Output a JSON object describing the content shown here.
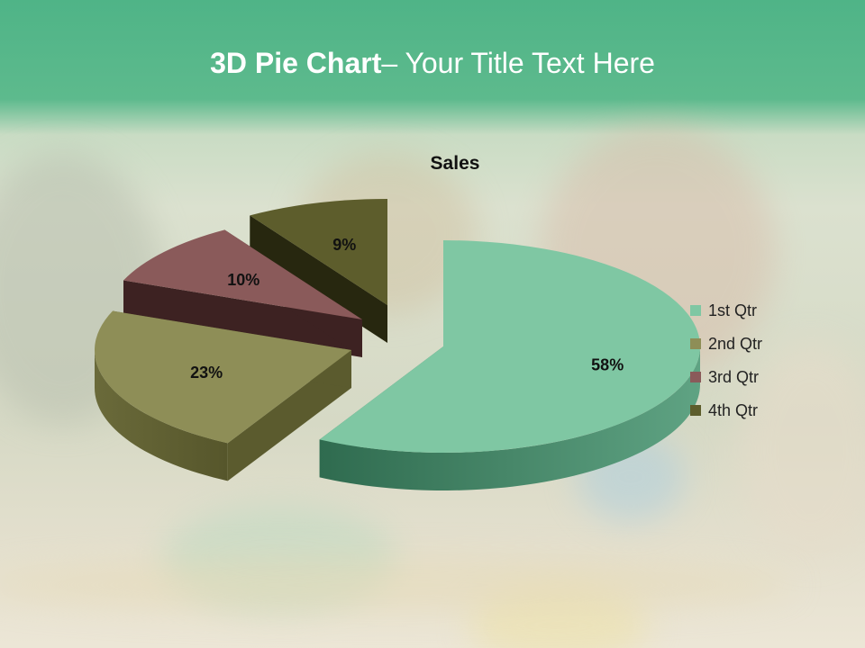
{
  "slide_title": {
    "bold": "3D Pie Chart",
    "rest": "– Your Title Text Here"
  },
  "chart_data": {
    "type": "pie",
    "title": "Sales",
    "categories": [
      "1st Qtr",
      "2nd Qtr",
      "3rd Qtr",
      "4th Qtr"
    ],
    "values": [
      58,
      23,
      10,
      9
    ],
    "labels": [
      "58%",
      "23%",
      "10%",
      "9%"
    ],
    "exploded": true,
    "three_d": true,
    "legend_position": "right",
    "colors": [
      "#7fc7a3",
      "#8e8e57",
      "#8a5a5a",
      "#5d5d2c"
    ]
  }
}
